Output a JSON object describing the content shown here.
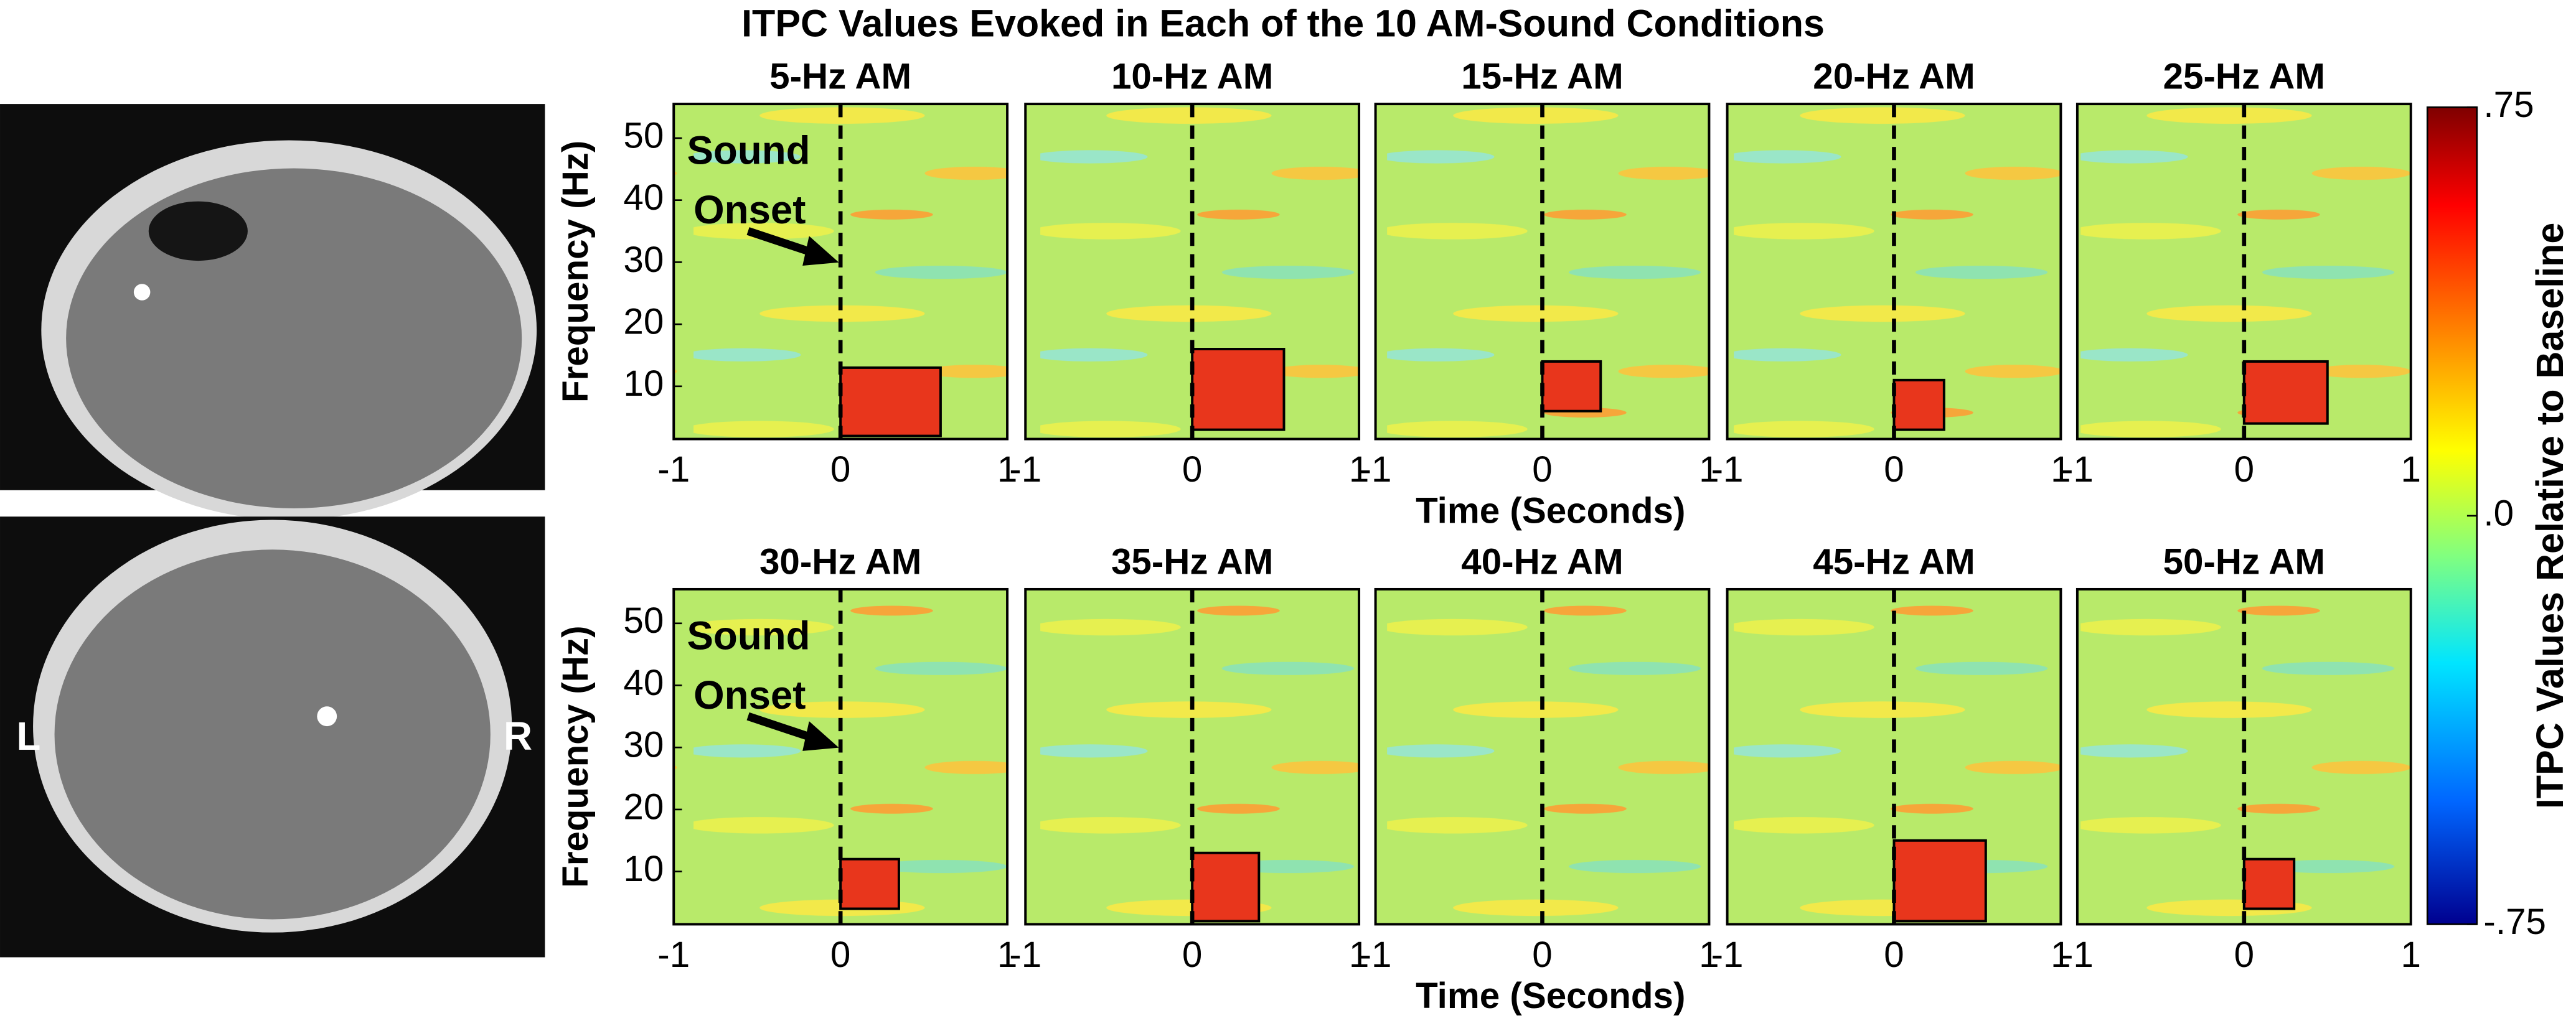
{
  "figure_title": "ITPC Values Evoked in Each of the 10 AM-Sound Conditions",
  "brain_labels": [
    "L",
    "R"
  ],
  "chart_data": [
    {
      "type": "heatmap",
      "title": "5-Hz AM",
      "xlim": [
        -1,
        1
      ],
      "xticks": [
        -1,
        0,
        1
      ],
      "ylim": [
        1.5,
        55.5
      ],
      "yticks": [
        10,
        20,
        30,
        40,
        50
      ],
      "ylabel": "Frequency (Hz)",
      "annotation": [
        "Sound",
        "Onset"
      ],
      "onset": 0,
      "cluster": {
        "t": [
          0,
          0.6
        ],
        "f": [
          2,
          13
        ]
      }
    },
    {
      "type": "heatmap",
      "title": "10-Hz AM",
      "xlim": [
        -1,
        1
      ],
      "xticks": [
        -1,
        0,
        1
      ],
      "ylim": [
        1.5,
        55.5
      ],
      "onset": 0,
      "cluster": {
        "t": [
          0,
          0.55
        ],
        "f": [
          3,
          16
        ]
      }
    },
    {
      "type": "heatmap",
      "title": "15-Hz AM",
      "xlim": [
        -1,
        1
      ],
      "xticks": [
        -1,
        0,
        1
      ],
      "ylim": [
        1.5,
        55.5
      ],
      "xlabel": "Time (Seconds)",
      "onset": 0,
      "cluster": {
        "t": [
          0,
          0.35
        ],
        "f": [
          6,
          14
        ]
      }
    },
    {
      "type": "heatmap",
      "title": "20-Hz AM",
      "xlim": [
        -1,
        1
      ],
      "xticks": [
        -1,
        0,
        1
      ],
      "ylim": [
        1.5,
        55.5
      ],
      "onset": 0,
      "cluster": {
        "t": [
          0,
          0.3
        ],
        "f": [
          3,
          11
        ]
      }
    },
    {
      "type": "heatmap",
      "title": "25-Hz AM",
      "xlim": [
        -1,
        1
      ],
      "xticks": [
        -1,
        0,
        1
      ],
      "ylim": [
        1.5,
        55.5
      ],
      "onset": 0,
      "cluster": {
        "t": [
          0,
          0.5
        ],
        "f": [
          4,
          14
        ]
      }
    },
    {
      "type": "heatmap",
      "title": "30-Hz AM",
      "xlim": [
        -1,
        1
      ],
      "xticks": [
        -1,
        0,
        1
      ],
      "ylim": [
        1.5,
        55.5
      ],
      "yticks": [
        10,
        20,
        30,
        40,
        50
      ],
      "ylabel": "Frequency (Hz)",
      "annotation": [
        "Sound",
        "Onset"
      ],
      "onset": 0,
      "cluster": {
        "t": [
          0,
          0.35
        ],
        "f": [
          4,
          12
        ]
      }
    },
    {
      "type": "heatmap",
      "title": "35-Hz AM",
      "xlim": [
        -1,
        1
      ],
      "xticks": [
        -1,
        0,
        1
      ],
      "ylim": [
        1.5,
        55.5
      ],
      "onset": 0,
      "cluster": {
        "t": [
          0,
          0.4
        ],
        "f": [
          2,
          13
        ]
      }
    },
    {
      "type": "heatmap",
      "title": "40-Hz AM",
      "xlim": [
        -1,
        1
      ],
      "xticks": [
        -1,
        0,
        1
      ],
      "ylim": [
        1.5,
        55.5
      ],
      "xlabel": "Time (Seconds)",
      "onset": 0
    },
    {
      "type": "heatmap",
      "title": "45-Hz AM",
      "xlim": [
        -1,
        1
      ],
      "xticks": [
        -1,
        0,
        1
      ],
      "ylim": [
        1.5,
        55.5
      ],
      "onset": 0,
      "cluster": {
        "t": [
          0,
          0.55
        ],
        "f": [
          2,
          15
        ]
      }
    },
    {
      "type": "heatmap",
      "title": "50-Hz AM",
      "xlim": [
        -1,
        1
      ],
      "xticks": [
        -1,
        0,
        1
      ],
      "ylim": [
        1.5,
        55.5
      ],
      "onset": 0,
      "cluster": {
        "t": [
          0,
          0.3
        ],
        "f": [
          4,
          12
        ]
      }
    },
    {
      "type": "colorbar",
      "label": "ITPC Values Relative to Baseline",
      "clim": [
        -0.75,
        0.75
      ],
      "ticks": [
        {
          "value": 0.75,
          "label": ".75"
        },
        {
          "value": 0,
          "label": ".0"
        },
        {
          "value": -0.75,
          "label": "-.75"
        }
      ]
    }
  ]
}
